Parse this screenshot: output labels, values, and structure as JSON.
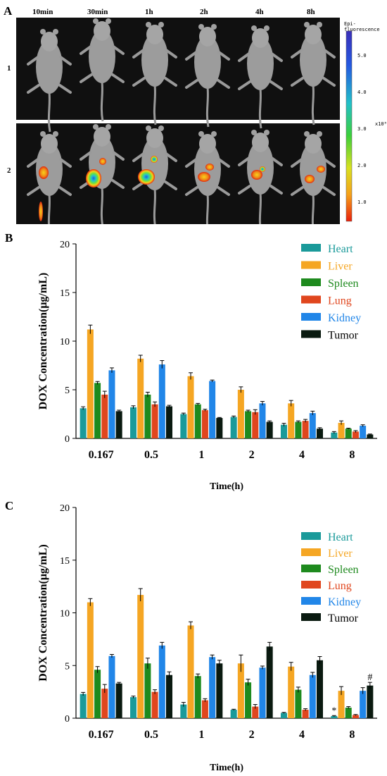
{
  "figure": {
    "panel_a": {
      "letter": "A",
      "time_labels": [
        "10min",
        "30min",
        "1h",
        "2h",
        "4h",
        "8h"
      ],
      "row_labels": [
        "1",
        "2"
      ],
      "colorbar": {
        "title": "Epi-fluorescence",
        "exponent": "x10⁸",
        "ticks": [
          "5.0",
          "4.0",
          "3.0",
          "2.0",
          "1.0"
        ]
      }
    },
    "panel_b": {
      "letter": "B"
    },
    "panel_c": {
      "letter": "C"
    }
  },
  "colors": {
    "Heart": "#1a9a9a",
    "Liver": "#f5a623",
    "Spleen": "#1e8a1e",
    "Lung": "#e0461e",
    "Kidney": "#2186e8",
    "Tumor": "#0a1a10"
  },
  "chart_data": [
    {
      "type": "bar",
      "panel": "B",
      "title": "",
      "xlabel": "Time(h)",
      "ylabel": "DOX Concentration(μg/mL)",
      "ylim": [
        0,
        20
      ],
      "yticks": [
        "0",
        "5",
        "10",
        "15",
        "20"
      ],
      "categories": [
        "0.167",
        "0.5",
        "1",
        "2",
        "4",
        "8"
      ],
      "legend_position": "top-right",
      "series": [
        {
          "name": "Heart",
          "values": [
            3.1,
            3.2,
            2.5,
            2.2,
            1.4,
            0.6
          ],
          "errors": [
            0.15,
            0.15,
            0.1,
            0.1,
            0.15,
            0.1
          ]
        },
        {
          "name": "Liver",
          "values": [
            11.2,
            8.2,
            6.4,
            5.0,
            3.6,
            1.6
          ],
          "errors": [
            0.45,
            0.35,
            0.35,
            0.3,
            0.3,
            0.2
          ]
        },
        {
          "name": "Spleen",
          "values": [
            5.7,
            4.5,
            3.5,
            2.8,
            1.7,
            1.0
          ],
          "errors": [
            0.15,
            0.25,
            0.1,
            0.1,
            0.1,
            0.05
          ]
        },
        {
          "name": "Lung",
          "values": [
            4.5,
            3.5,
            2.9,
            2.7,
            1.8,
            0.7
          ],
          "errors": [
            0.35,
            0.25,
            0.1,
            0.25,
            0.15,
            0.1
          ]
        },
        {
          "name": "Kidney",
          "values": [
            7.0,
            7.6,
            5.9,
            3.6,
            2.6,
            1.3
          ],
          "errors": [
            0.25,
            0.4,
            0.1,
            0.2,
            0.2,
            0.1
          ]
        },
        {
          "name": "Tumor",
          "values": [
            2.8,
            3.3,
            2.1,
            1.7,
            1.0,
            0.4
          ],
          "errors": [
            0.1,
            0.1,
            0.05,
            0.1,
            0.1,
            0.05
          ]
        }
      ],
      "annotations": []
    },
    {
      "type": "bar",
      "panel": "C",
      "title": "",
      "xlabel": "Time(h)",
      "ylabel": "DOX Concentration(μg/mL)",
      "ylim": [
        0,
        20
      ],
      "yticks": [
        "0",
        "5",
        "10",
        "15",
        "20"
      ],
      "categories": [
        "0.167",
        "0.5",
        "1",
        "2",
        "4",
        "8"
      ],
      "legend_position": "top-right",
      "series": [
        {
          "name": "Heart",
          "values": [
            2.3,
            2.0,
            1.3,
            0.8,
            0.5,
            0.2
          ],
          "errors": [
            0.15,
            0.1,
            0.2,
            0.05,
            0.05,
            0.05
          ]
        },
        {
          "name": "Liver",
          "values": [
            11.0,
            11.7,
            8.8,
            5.2,
            4.9,
            2.6
          ],
          "errors": [
            0.35,
            0.6,
            0.35,
            0.8,
            0.4,
            0.4
          ]
        },
        {
          "name": "Spleen",
          "values": [
            4.6,
            5.2,
            4.0,
            3.4,
            2.7,
            1.0
          ],
          "errors": [
            0.3,
            0.5,
            0.2,
            0.3,
            0.25,
            0.1
          ]
        },
        {
          "name": "Lung",
          "values": [
            2.8,
            2.5,
            1.7,
            1.1,
            0.8,
            0.3
          ],
          "errors": [
            0.4,
            0.2,
            0.15,
            0.2,
            0.1,
            0.05
          ]
        },
        {
          "name": "Kidney",
          "values": [
            5.9,
            6.9,
            5.8,
            4.8,
            4.1,
            2.6
          ],
          "errors": [
            0.15,
            0.3,
            0.2,
            0.15,
            0.25,
            0.3
          ]
        },
        {
          "name": "Tumor",
          "values": [
            3.3,
            4.1,
            5.2,
            6.8,
            5.5,
            3.1
          ],
          "errors": [
            0.1,
            0.3,
            0.3,
            0.4,
            0.35,
            0.3
          ]
        }
      ],
      "annotations": [
        {
          "text": "*",
          "category": "8",
          "series": "Heart"
        },
        {
          "text": "#",
          "category": "8",
          "series": "Tumor"
        }
      ]
    }
  ]
}
